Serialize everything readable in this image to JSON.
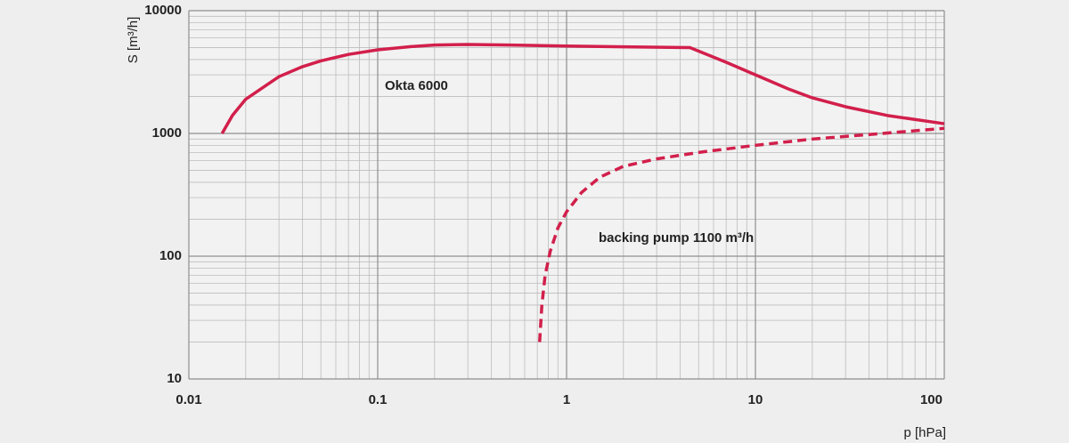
{
  "chart_data": {
    "type": "line",
    "x_label": "p [hPa]",
    "y_label": "S [m³/h]",
    "xscale": "log",
    "yscale": "log",
    "grid": true,
    "minor_grid": true,
    "xlim": [
      0.01,
      100
    ],
    "xticks": [
      0.01,
      0.1,
      1,
      10,
      100
    ],
    "ylim": [
      10,
      10000
    ],
    "yticks": [
      10,
      100,
      1000,
      10000
    ],
    "series": [
      {
        "name": "Okta 6000",
        "color": "#d21f4b",
        "dashed": false,
        "x": [
          0.015,
          0.017,
          0.02,
          0.025,
          0.03,
          0.04,
          0.05,
          0.07,
          0.1,
          0.15,
          0.2,
          0.3,
          0.5,
          1,
          2,
          4.5,
          7,
          10,
          15,
          20,
          30,
          50,
          100
        ],
        "values": [
          1000,
          1400,
          1900,
          2400,
          2900,
          3500,
          3900,
          4400,
          4800,
          5100,
          5250,
          5300,
          5250,
          5150,
          5080,
          5000,
          3800,
          3000,
          2300,
          1950,
          1650,
          1400,
          1200
        ]
      },
      {
        "name": "backing pump 1100 m³/h",
        "color": "#d21f4b",
        "dashed": true,
        "x": [
          0.72,
          0.74,
          0.77,
          0.82,
          0.9,
          1,
          1.2,
          1.5,
          2,
          3,
          5,
          10,
          20,
          40,
          100
        ],
        "values": [
          20,
          40,
          70,
          110,
          170,
          230,
          330,
          440,
          540,
          620,
          700,
          800,
          900,
          980,
          1100
        ]
      }
    ]
  }
}
